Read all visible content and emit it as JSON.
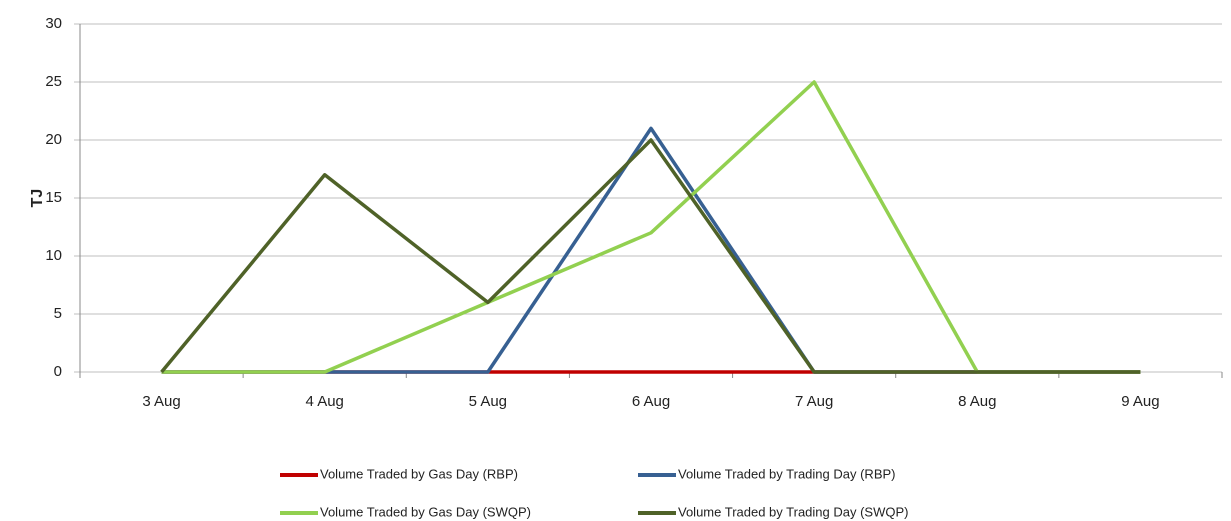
{
  "chart_data": {
    "type": "line",
    "y_label": "TJ",
    "categories": [
      "3 Aug",
      "4 Aug",
      "5 Aug",
      "6 Aug",
      "7 Aug",
      "8 Aug",
      "9 Aug"
    ],
    "series": [
      {
        "name": "Volume Traded by Gas Day (RBP)",
        "color": "#c00000",
        "values": [
          0,
          0,
          0,
          0,
          0,
          0,
          0
        ]
      },
      {
        "name": "Volume Traded by Trading Day (RBP)",
        "color": "#376092",
        "values": [
          0,
          0,
          0,
          21,
          0,
          0,
          0
        ]
      },
      {
        "name": "Volume Traded by Gas Day (SWQP)",
        "color": "#92d050",
        "values": [
          0,
          0,
          6,
          12,
          25,
          0,
          0
        ]
      },
      {
        "name": "Volume Traded by Trading Day (SWQP)",
        "color": "#4f6228",
        "values": [
          0,
          17,
          6,
          20,
          0,
          0,
          0
        ]
      }
    ],
    "ylim": [
      0,
      30
    ],
    "yticks": [
      0,
      5,
      10,
      15,
      20,
      25,
      30
    ],
    "grid": true
  }
}
